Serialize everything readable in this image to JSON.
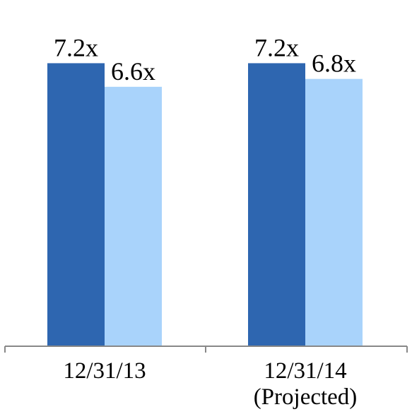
{
  "chart_data": {
    "type": "bar",
    "categories": [
      [
        "12/31/13"
      ],
      [
        "12/31/14",
        "(Projected)"
      ]
    ],
    "series": [
      {
        "values": [
          7.2,
          7.2
        ],
        "labels": [
          "7.2x",
          "7.2x"
        ],
        "color": "#2e66b0"
      },
      {
        "values": [
          6.6,
          6.8
        ],
        "labels": [
          "6.6x",
          "6.8x"
        ],
        "color": "#a9d3fb"
      }
    ],
    "ylim": [
      0,
      8.7
    ],
    "grid": false,
    "legend": "none",
    "axis_color": "#888888"
  }
}
